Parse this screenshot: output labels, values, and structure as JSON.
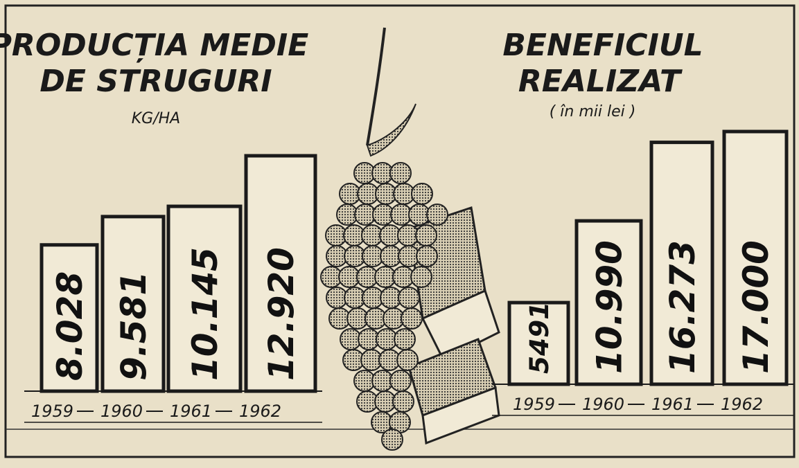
{
  "chart_data": [
    {
      "type": "bar",
      "title": [
        "PRODUCȚIA MEDIE",
        "DE STRUGURI"
      ],
      "subtitle": "KG/HA",
      "categories": [
        "1959",
        "1960",
        "1961",
        "1962"
      ],
      "values": [
        8028,
        9581,
        10145,
        12920
      ],
      "value_labels": [
        "8.028",
        "9.581",
        "10.145",
        "12.920"
      ],
      "color": "#f1ead6"
    },
    {
      "type": "bar",
      "title": [
        "BENEFICIUL",
        "REALIZAT"
      ],
      "subtitle": "( în mii lei )",
      "categories": [
        "1959",
        "1960",
        "1961",
        "1962"
      ],
      "values": [
        5491,
        10990,
        16273,
        17000
      ],
      "value_labels": [
        "5491",
        "10.990",
        "16.273",
        "17.000"
      ],
      "color": "#f1ead6"
    }
  ]
}
